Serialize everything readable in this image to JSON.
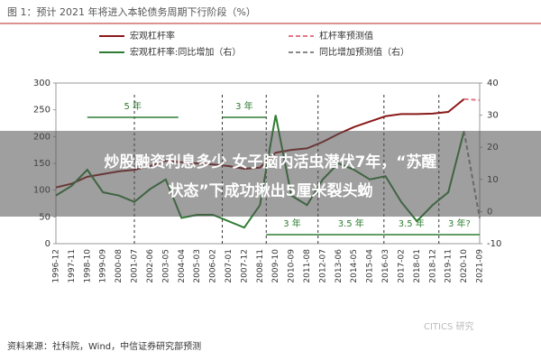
{
  "chart_data": {
    "type": "line",
    "title": "图 1：预计 2021 年将进入本轮债务周期下行阶段（%）",
    "categories": [
      "1996-12",
      "1997-11",
      "1998-10",
      "1999-09",
      "2000-08",
      "2001-07",
      "2002-06",
      "2003-05",
      "2004-04",
      "2005-03",
      "2006-02",
      "2007-01",
      "2007-12",
      "2008-11",
      "2009-10",
      "2010-09",
      "2011-08",
      "2012-07",
      "2013-06",
      "2014-05",
      "2015-04",
      "2016-03",
      "2017-02",
      "2018-01",
      "2018-12",
      "2019-11",
      "2020-10",
      "2021-09"
    ],
    "series": [
      {
        "name": "宏观杠杆率",
        "color": "#8b1a1a",
        "values": [
          105,
          112,
          125,
          130,
          135,
          138,
          145,
          155,
          152,
          150,
          148,
          145,
          140,
          142,
          170,
          175,
          178,
          190,
          205,
          218,
          228,
          238,
          242,
          242,
          243,
          246,
          270,
          null
        ]
      },
      {
        "name": "杠杆率预测值",
        "color": "#e07a8a",
        "dashed": true,
        "values": [
          null,
          null,
          null,
          null,
          null,
          null,
          null,
          null,
          null,
          null,
          null,
          null,
          null,
          null,
          null,
          null,
          null,
          null,
          null,
          null,
          null,
          null,
          null,
          null,
          null,
          null,
          270,
          268
        ]
      },
      {
        "name": "宏观杠杆率:同比增加（右）",
        "color": "#2e7d32",
        "axis": "y2",
        "values": [
          5,
          8,
          13,
          6,
          5,
          3,
          7,
          10,
          -2,
          -1,
          -1,
          -3,
          -5,
          2,
          30,
          5,
          2,
          10,
          15,
          13,
          10,
          11,
          3,
          -3,
          2,
          6,
          25,
          null
        ]
      },
      {
        "name": "同比增加预测值（右）",
        "color": "#888888",
        "axis": "y2",
        "dashed": true,
        "values": [
          null,
          null,
          null,
          null,
          null,
          null,
          null,
          null,
          null,
          null,
          null,
          null,
          null,
          null,
          null,
          null,
          null,
          null,
          null,
          null,
          null,
          null,
          null,
          null,
          null,
          null,
          25,
          -2
        ]
      }
    ],
    "ylim": [
      0,
      300
    ],
    "yticks": [
      0,
      50,
      100,
      150,
      200,
      250,
      300
    ],
    "y2lim": [
      -10,
      40
    ],
    "y2ticks": [
      -10,
      0,
      10,
      20,
      30,
      40
    ],
    "annotations": [
      "5 年",
      "3 年",
      "3 年",
      "3.5 年",
      "3.5 年",
      "3 年?"
    ],
    "source": "资料来源：社科院，Wind，中信证券研究部预测",
    "watermark": "CITICS 研究"
  },
  "overlay_text": [
    "炒股融资利息多少 女子脑内活虫潜伏7年，“苏醒",
    "状态”下成功揪出5厘米裂头蚴"
  ]
}
